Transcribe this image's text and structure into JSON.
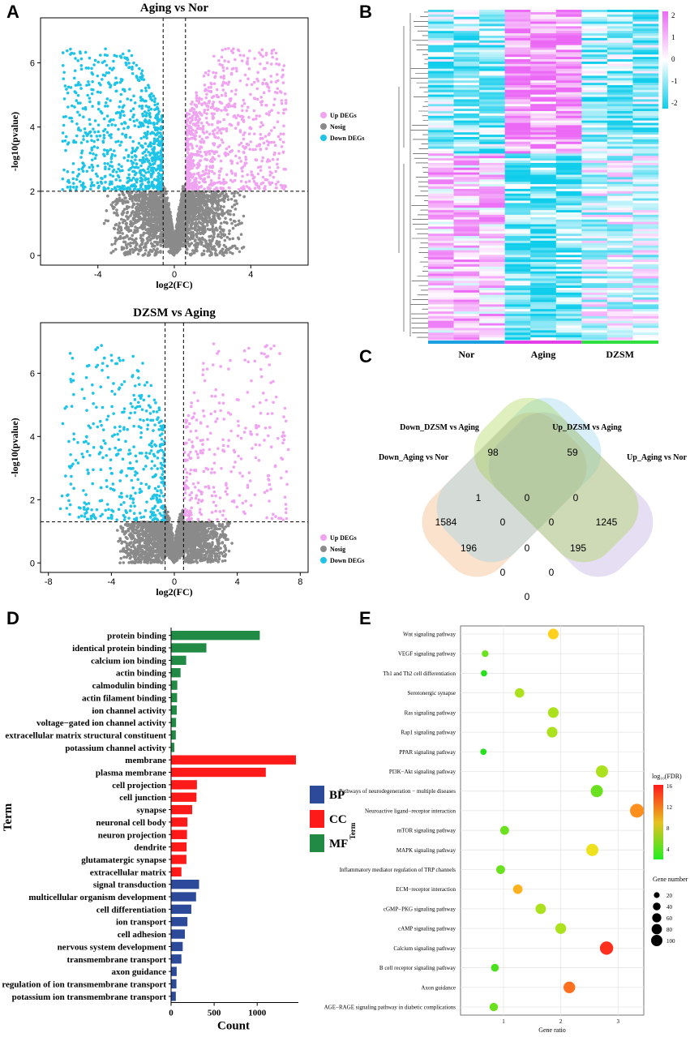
{
  "colors": {
    "up": "#f0a3f0",
    "nosig": "#8a8a8a",
    "down": "#1ec4e8",
    "bp": "#2d4a9a",
    "cc": "#ff1a1a",
    "mf": "#218a45",
    "nor_bar": "#1aa0e0",
    "aging_bar": "#e33ee8",
    "dzsm_bar": "#30e040"
  },
  "panels": {
    "a": "A",
    "b": "B",
    "c": "C",
    "d": "D",
    "e": "E"
  },
  "chart_data": [
    {
      "id": "A1",
      "type": "scatter",
      "title": "Aging vs Nor",
      "xlabel": "log2(FC)",
      "ylabel": "-log10(pvalue)",
      "xlim": [
        -7,
        7
      ],
      "ylim": [
        -0.3,
        7.4
      ],
      "xticks": [
        "-4",
        "0",
        "4"
      ],
      "yticks": [
        "0",
        "2",
        "4",
        "6"
      ],
      "thresholds": {
        "fc": [
          -0.585,
          0.585
        ],
        "p": 2
      },
      "legend": [
        "Up DEGs",
        "Nosig",
        "Down DEGs"
      ],
      "points": {
        "up": 820,
        "down": 760,
        "nosig": 2600,
        "seed": 11,
        "xspan": 5.8,
        "ymax": 6.4
      }
    },
    {
      "id": "A2",
      "type": "scatter",
      "title": "DZSM vs Aging",
      "xlabel": "log2(FC)",
      "ylabel": "-log10(pvalue)",
      "xlim": [
        -8.5,
        8.5
      ],
      "ylim": [
        -0.3,
        7.6
      ],
      "xticks": [
        "-8",
        "-4",
        "0",
        "4",
        "8"
      ],
      "yticks": [
        "0",
        "2",
        "4",
        "6"
      ],
      "thresholds": {
        "fc": [
          -0.585,
          0.585
        ],
        "p": 1.3
      },
      "legend": [
        "Up DEGs",
        "Nosig",
        "Down DEGs"
      ],
      "points": {
        "up": 300,
        "down": 420,
        "nosig": 2600,
        "seed": 23,
        "xspan": 7.2,
        "ymax": 6.9
      }
    },
    {
      "id": "B",
      "type": "heatmap",
      "groups": [
        "Nor",
        "Aging",
        "DZSM"
      ],
      "colorbar_ticks": [
        "2",
        "1",
        "0",
        "-1",
        "-2"
      ]
    },
    {
      "id": "C",
      "type": "venn",
      "sets": [
        "Down_DZSM vs Aging",
        "Up_DZSM vs Aging",
        "Down_Aging vs Nor",
        "Up_Aging vs Nor"
      ],
      "regions": [
        "98",
        "59",
        "1",
        "0",
        "0",
        "1584",
        "0",
        "0",
        "1245",
        "196",
        "0",
        "195",
        "0",
        "0",
        "0"
      ]
    },
    {
      "id": "D",
      "type": "bar",
      "ylabel": "Term",
      "xlabel": "Count",
      "xticks": [
        "0",
        "500",
        "1000"
      ],
      "xmax": 1450,
      "legend": [
        "BP",
        "CC",
        "MF"
      ],
      "categories": [
        "protein binding",
        "identical protein binding",
        "calcium ion binding",
        "actin binding",
        "calmodulin binding",
        "actin filament binding",
        "ion channel activity",
        "voltage−gated ion channel activity",
        "extracellular matrix structural constituent",
        "potassium channel activity",
        "membrane",
        "plasma membrane",
        "cell projection",
        "cell junction",
        "synapse",
        "neuronal cell body",
        "neuron projection",
        "dendrite",
        "glutamatergic synapse",
        "extracellular matrix",
        "signal transduction",
        "multicellular organism development",
        "cell differentiation",
        "ion transport",
        "cell adhesion",
        "nervous system development",
        "transmembrane transport",
        "axon guidance",
        "regulation of ion transmembrane transport",
        "potassium ion transmembrane transport"
      ],
      "groups": [
        "MF",
        "MF",
        "MF",
        "MF",
        "MF",
        "MF",
        "MF",
        "MF",
        "MF",
        "MF",
        "CC",
        "CC",
        "CC",
        "CC",
        "CC",
        "CC",
        "CC",
        "CC",
        "CC",
        "CC",
        "BP",
        "BP",
        "BP",
        "BP",
        "BP",
        "BP",
        "BP",
        "BP",
        "BP",
        "BP"
      ],
      "values": [
        1030,
        410,
        175,
        110,
        72,
        70,
        66,
        58,
        55,
        38,
        1450,
        1100,
        300,
        295,
        245,
        190,
        185,
        180,
        178,
        120,
        325,
        290,
        235,
        190,
        160,
        135,
        120,
        65,
        62,
        55
      ]
    },
    {
      "id": "E",
      "type": "scatter",
      "xlabel": "Gene ratio",
      "ylabel": "Term",
      "xticks": [
        "1",
        "2",
        "3"
      ],
      "xlim": [
        0.25,
        3.45
      ],
      "legend_fdr_title": "log₁₀(FDR)",
      "fdr_ticks": [
        "16",
        "12",
        "8",
        "4"
      ],
      "legend_size_title": "Gene number",
      "size_ticks": [
        "20",
        "40",
        "60",
        "80",
        "100"
      ],
      "terms": [
        "Wnt signaling pathway",
        "VEGF signaling pathway",
        "Th1 and Th2 cell differentiation",
        "Serotonergic synapse",
        "Ras signaling pathway",
        "Rap1 signaling pathway",
        "PPAR signaling pathway",
        "PI3K−Akt signaling pathway",
        "Pathways of neurodegeneration − multiple diseases",
        "Neuroactive ligand−receptor interaction",
        "mTOR signaling pathway",
        "MAPK signaling pathway",
        "Inflammatory mediator regulation of TRP channels",
        "ECM−receptor interaction",
        "cGMP−PKG signaling pathway",
        "cAMP signaling pathway",
        "Calcium signaling pathway",
        "B cell receptor signaling pathway",
        "Axon guidance",
        "AGE−RAGE signaling pathway in diabetic complications"
      ],
      "gene_ratio": [
        1.87,
        0.68,
        0.66,
        1.28,
        1.87,
        1.85,
        0.65,
        2.72,
        2.63,
        3.33,
        1.02,
        2.55,
        0.95,
        1.25,
        1.65,
        2.0,
        2.8,
        0.85,
        2.15,
        0.83
      ],
      "log_fdr": [
        10,
        5,
        3,
        7,
        7,
        7,
        3,
        7,
        5,
        12,
        5,
        9,
        5,
        11,
        7,
        7,
        15,
        4,
        13,
        5
      ],
      "gene_number": [
        40,
        12,
        10,
        30,
        40,
        40,
        10,
        55,
        55,
        75,
        25,
        55,
        25,
        30,
        38,
        42,
        68,
        18,
        50,
        22
      ]
    }
  ]
}
